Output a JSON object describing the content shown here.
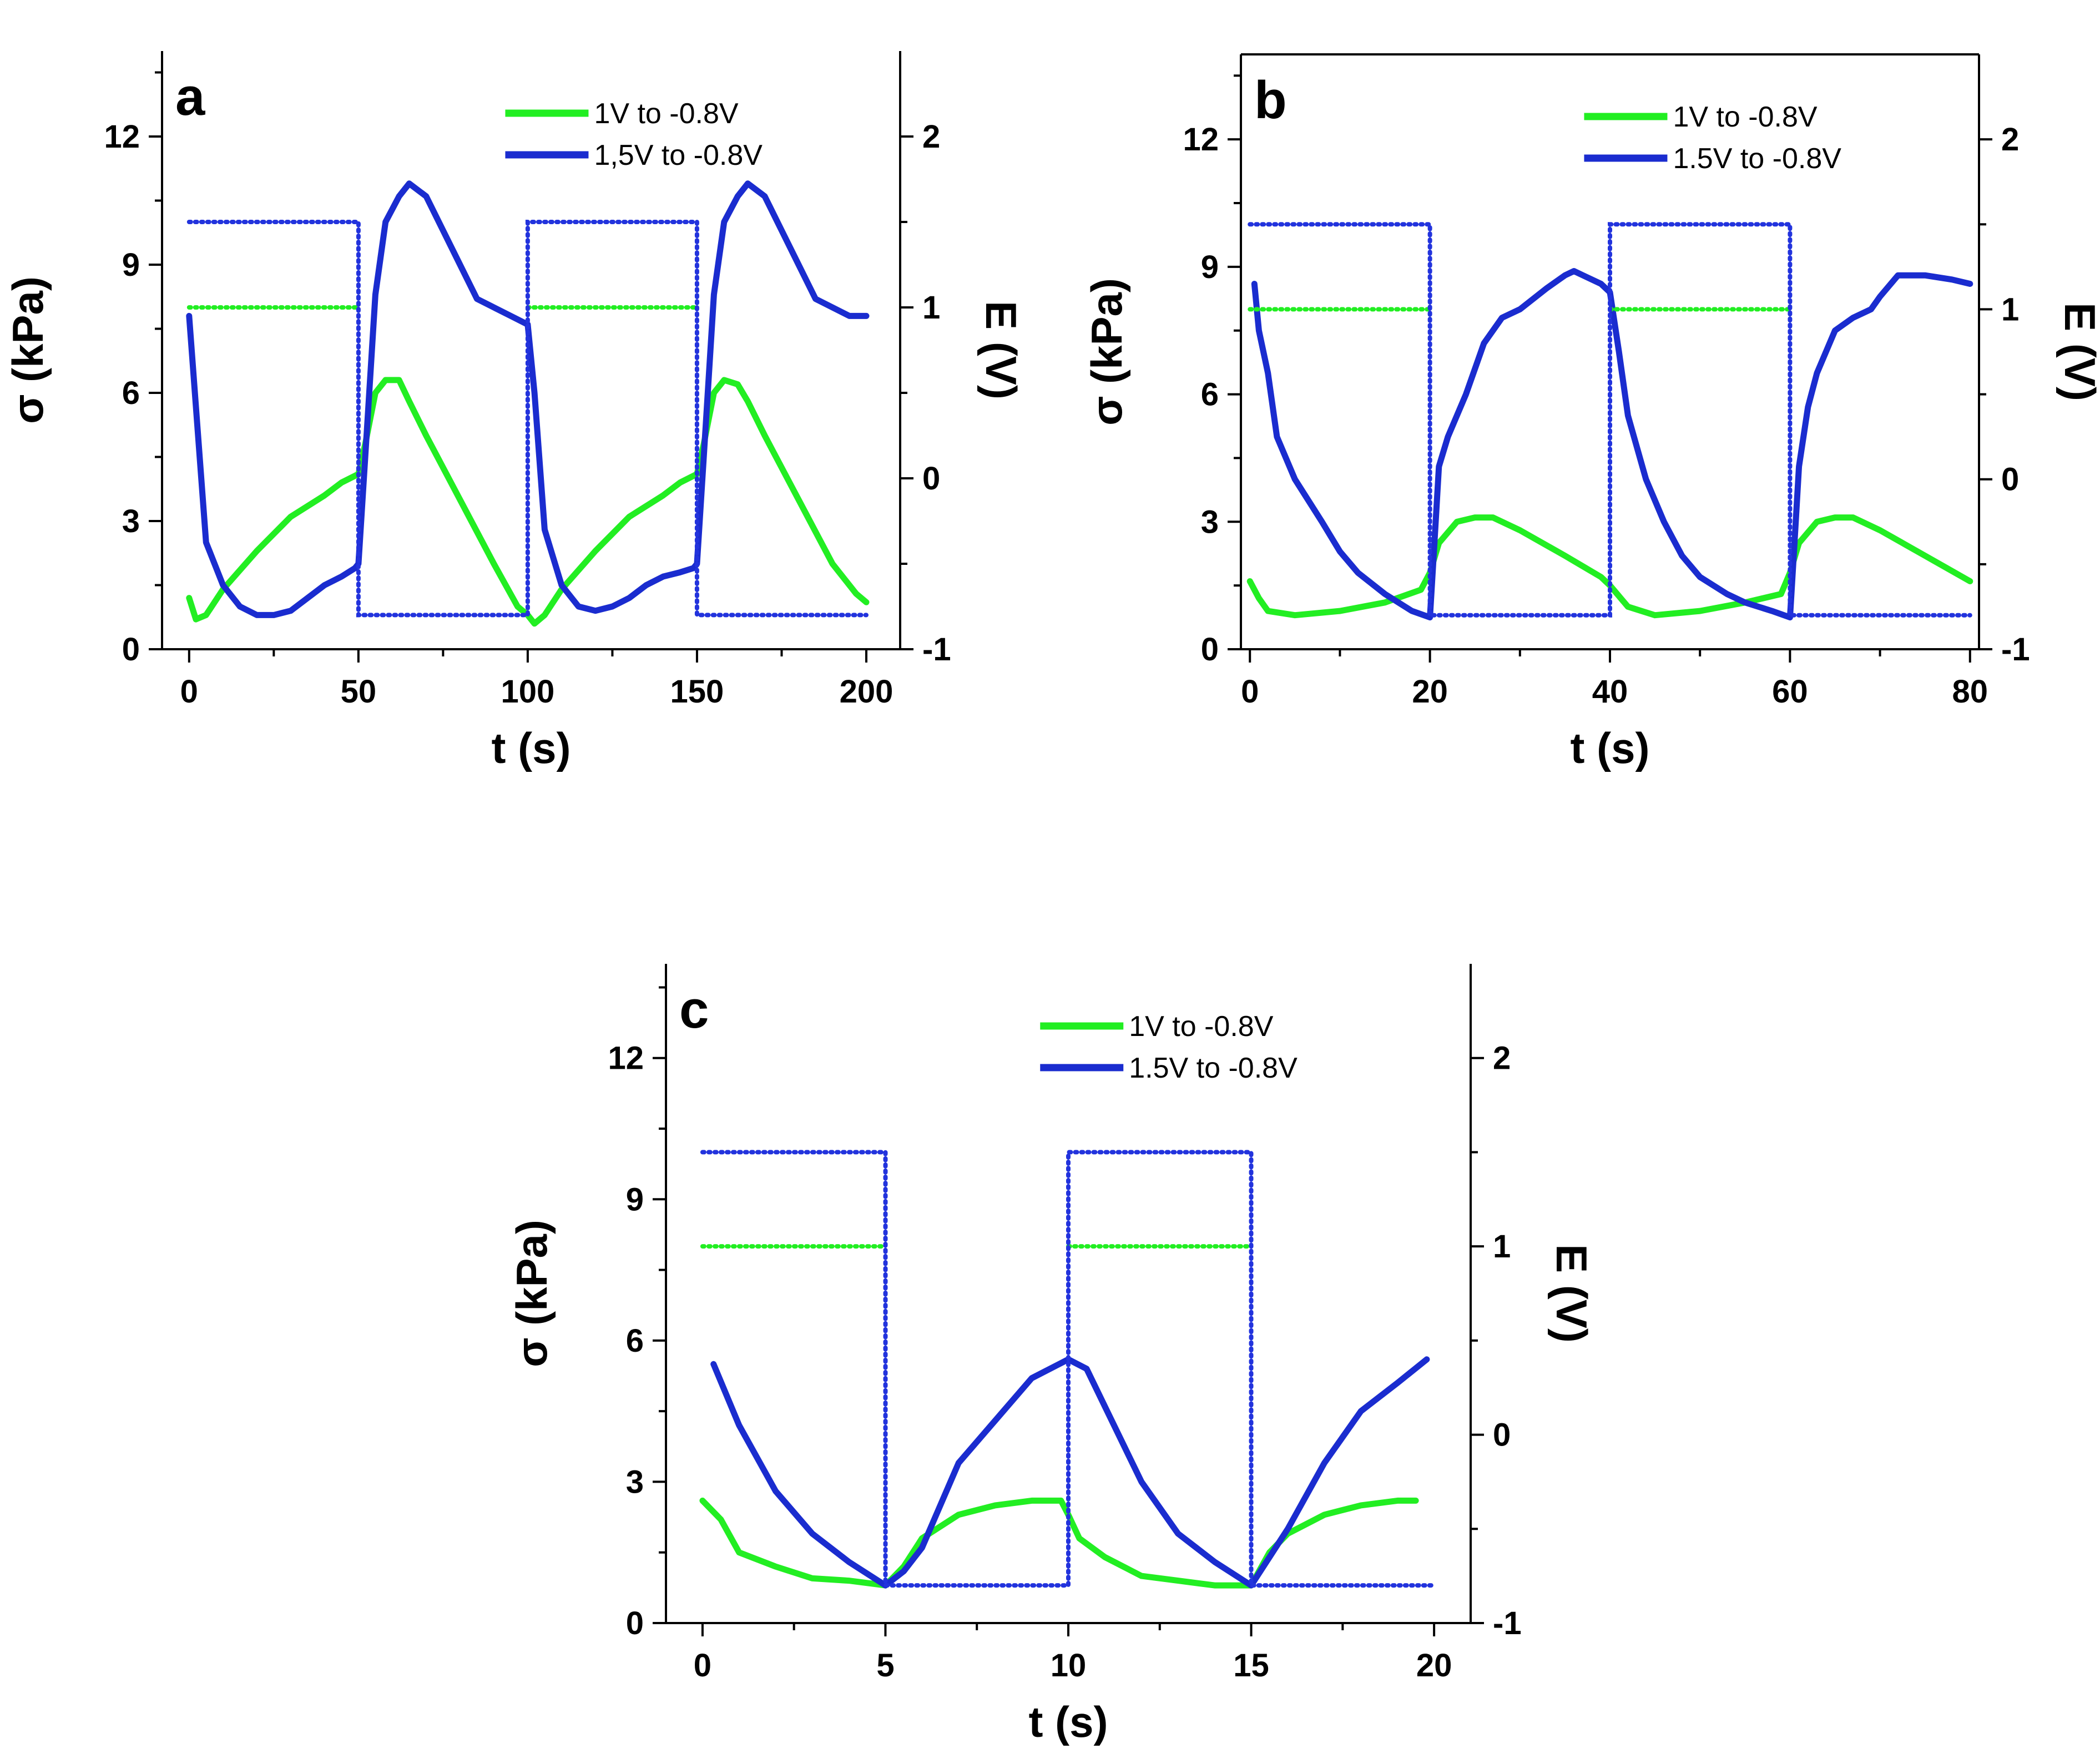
{
  "colors": {
    "green": "#22ee22",
    "blue": "#1a2ccf",
    "dotted_blue": "#2233dd",
    "axis": "#000000"
  },
  "chart_data": [
    {
      "type": "line",
      "panel": "a",
      "xlabel": "t (s)",
      "ylabel": "σ (kPa)",
      "y2label": "E (V)",
      "xlim": [
        -8,
        210
      ],
      "ylim": [
        0,
        14
      ],
      "y2lim": [
        -1,
        2.5
      ],
      "xticks": [
        0,
        50,
        100,
        150,
        200
      ],
      "yticks": [
        0,
        3,
        6,
        9,
        12
      ],
      "y2ticks": [
        -1,
        0,
        1,
        2
      ],
      "xtick_labels": [
        "0",
        "50",
        "100",
        "150",
        "200"
      ],
      "ytick_labels": [
        "0",
        "3",
        "6",
        "9",
        "12"
      ],
      "y2tick_labels": [
        "-1",
        "0",
        "1",
        "2"
      ],
      "legend": {
        "placement": "top-center",
        "entries": [
          "1V to -0.8V",
          "1,5V to -0.8V"
        ]
      },
      "series": [
        {
          "name": "1V to -0.8V",
          "axis": "left",
          "style": "solid",
          "color": "green",
          "x": [
            0,
            2,
            5,
            10,
            20,
            30,
            40,
            45,
            50,
            52,
            55,
            58,
            62,
            65,
            70,
            80,
            90,
            97,
            100,
            102,
            105,
            110,
            120,
            130,
            140,
            145,
            150,
            152,
            155,
            158,
            162,
            165,
            170,
            180,
            190,
            197,
            200
          ],
          "y": [
            1.2,
            0.7,
            0.8,
            1.4,
            2.3,
            3.1,
            3.6,
            3.9,
            4.1,
            4.8,
            6.0,
            6.3,
            6.3,
            5.8,
            5.0,
            3.5,
            2.0,
            1.0,
            0.8,
            0.6,
            0.8,
            1.4,
            2.3,
            3.1,
            3.6,
            3.9,
            4.1,
            4.8,
            6.0,
            6.3,
            6.2,
            5.8,
            5.0,
            3.5,
            2.0,
            1.3,
            1.1
          ]
        },
        {
          "name": "1,5V to -0.8V",
          "axis": "left",
          "style": "solid",
          "color": "blue",
          "x": [
            0,
            5,
            10,
            15,
            20,
            25,
            30,
            35,
            40,
            45,
            49,
            50,
            52,
            55,
            58,
            60,
            62,
            65,
            70,
            75,
            80,
            85,
            90,
            95,
            100,
            102,
            105,
            110,
            115,
            120,
            125,
            130,
            135,
            140,
            145,
            149,
            150,
            152,
            155,
            158,
            160,
            162,
            165,
            170,
            175,
            180,
            185,
            190,
            195,
            200
          ],
          "y": [
            7.8,
            2.5,
            1.5,
            1.0,
            0.8,
            0.8,
            0.9,
            1.2,
            1.5,
            1.7,
            1.9,
            2.0,
            4.5,
            8.3,
            10.0,
            10.3,
            10.6,
            10.9,
            10.6,
            9.8,
            9.0,
            8.2,
            8.0,
            7.8,
            7.6,
            6.0,
            2.8,
            1.5,
            1.0,
            0.9,
            1.0,
            1.2,
            1.5,
            1.7,
            1.8,
            1.9,
            2.0,
            4.5,
            8.3,
            10.0,
            10.3,
            10.6,
            10.9,
            10.6,
            9.8,
            9.0,
            8.2,
            8.0,
            7.8,
            7.8
          ]
        },
        {
          "name": "E (1V to -0.8V)",
          "axis": "right",
          "style": "dotted",
          "color": "green",
          "x": [
            0,
            50,
            null,
            100,
            150
          ],
          "y": [
            1.0,
            1.0,
            null,
            1.0,
            1.0
          ]
        },
        {
          "name": "E (1.5V to -0.8V)",
          "axis": "right",
          "style": "dotted",
          "color": "blue",
          "x": [
            0,
            50,
            50,
            100,
            100,
            150,
            150,
            200
          ],
          "y": [
            1.5,
            1.5,
            -0.8,
            -0.8,
            1.5,
            1.5,
            -0.8,
            -0.8
          ]
        }
      ]
    },
    {
      "type": "line",
      "panel": "b",
      "xlabel": "t (s)",
      "ylabel": "σ (kPa)",
      "y2label": "E (V)",
      "xlim": [
        -1,
        81
      ],
      "ylim": [
        0,
        14
      ],
      "y2lim": [
        -1,
        2.5
      ],
      "xticks": [
        0,
        20,
        40,
        60,
        80
      ],
      "yticks": [
        0,
        3,
        6,
        9,
        12
      ],
      "y2ticks": [
        -1,
        0,
        1,
        2
      ],
      "xtick_labels": [
        "0",
        "20",
        "40",
        "60",
        "80"
      ],
      "ytick_labels": [
        "0",
        "3",
        "6",
        "9",
        "12"
      ],
      "y2tick_labels": [
        "-1",
        "0",
        "1",
        "2"
      ],
      "legend": {
        "placement": "top-center",
        "entries": [
          "1V to -0.8V",
          "1.5V to -0.8V"
        ]
      },
      "series": [
        {
          "name": "1V to -0.8V",
          "axis": "left",
          "style": "solid",
          "color": "green",
          "x": [
            0,
            1,
            2,
            5,
            10,
            15,
            19,
            20,
            21,
            23,
            25,
            27,
            30,
            35,
            39,
            40,
            42,
            45,
            50,
            55,
            59,
            60,
            61,
            63,
            65,
            67,
            70,
            75,
            80
          ],
          "y": [
            1.6,
            1.2,
            0.9,
            0.8,
            0.9,
            1.1,
            1.4,
            1.8,
            2.5,
            3.0,
            3.1,
            3.1,
            2.8,
            2.2,
            1.7,
            1.5,
            1.0,
            0.8,
            0.9,
            1.1,
            1.3,
            1.8,
            2.5,
            3.0,
            3.1,
            3.1,
            2.8,
            2.2,
            1.6
          ]
        },
        {
          "name": "1.5V to -0.8V",
          "axis": "left",
          "style": "solid",
          "color": "blue",
          "x": [
            0.5,
            1,
            2,
            3,
            5,
            8,
            10,
            12,
            15,
            18,
            20,
            20.5,
            21,
            22,
            24,
            26,
            28,
            30,
            33,
            35,
            36,
            37,
            39,
            40,
            41,
            42,
            44,
            46,
            48,
            50,
            53,
            55,
            58,
            60,
            60.5,
            61,
            62,
            63,
            65,
            67,
            69,
            70,
            72,
            75,
            78,
            80
          ],
          "y": [
            8.6,
            7.5,
            6.5,
            5.0,
            4.0,
            3.0,
            2.3,
            1.8,
            1.3,
            0.9,
            0.75,
            2.5,
            4.3,
            5.0,
            6.0,
            7.2,
            7.8,
            8.0,
            8.5,
            8.8,
            8.9,
            8.8,
            8.6,
            8.4,
            7.0,
            5.5,
            4.0,
            3.0,
            2.2,
            1.7,
            1.3,
            1.1,
            0.9,
            0.75,
            2.5,
            4.3,
            5.7,
            6.5,
            7.5,
            7.8,
            8.0,
            8.3,
            8.8,
            8.8,
            8.7,
            8.6
          ]
        },
        {
          "name": "E (1V to -0.8V)",
          "axis": "right",
          "style": "dotted",
          "color": "green",
          "x": [
            0,
            20,
            null,
            40,
            60
          ],
          "y": [
            1.0,
            1.0,
            null,
            1.0,
            1.0
          ]
        },
        {
          "name": "E (1.5V to -0.8V)",
          "axis": "right",
          "style": "dotted",
          "color": "blue",
          "x": [
            0,
            20,
            20,
            40,
            40,
            60,
            60,
            80
          ],
          "y": [
            1.5,
            1.5,
            -0.8,
            -0.8,
            1.5,
            1.5,
            -0.8,
            -0.8
          ]
        }
      ]
    },
    {
      "type": "line",
      "panel": "c",
      "xlabel": "t (s)",
      "ylabel": "σ (kPa)",
      "y2label": "E (V)",
      "xlim": [
        -1,
        21
      ],
      "ylim": [
        0,
        14
      ],
      "y2lim": [
        -1,
        2.5
      ],
      "xticks": [
        0,
        5,
        10,
        15,
        20
      ],
      "yticks": [
        0,
        3,
        6,
        9,
        12
      ],
      "y2ticks": [
        -1,
        0,
        1,
        2
      ],
      "xtick_labels": [
        "0",
        "5",
        "10",
        "15",
        "20"
      ],
      "ytick_labels": [
        "0",
        "3",
        "6",
        "9",
        "12"
      ],
      "y2tick_labels": [
        "-1",
        "0",
        "1",
        "2"
      ],
      "legend": {
        "placement": "top-center",
        "entries": [
          "1V to -0.8V",
          "1.5V to -0.8V"
        ]
      },
      "series": [
        {
          "name": "1V to -0.8V",
          "axis": "left",
          "style": "solid",
          "color": "green",
          "x": [
            0,
            0.5,
            1,
            2,
            3,
            4,
            5,
            5.5,
            6,
            7,
            8,
            9,
            9.8,
            10,
            10.3,
            11,
            12,
            13,
            14,
            15,
            15.5,
            16,
            17,
            18,
            19,
            19.5
          ],
          "y": [
            2.6,
            2.2,
            1.5,
            1.2,
            0.95,
            0.9,
            0.8,
            1.2,
            1.8,
            2.3,
            2.5,
            2.6,
            2.6,
            2.3,
            1.8,
            1.4,
            1.0,
            0.9,
            0.8,
            0.8,
            1.5,
            1.9,
            2.3,
            2.5,
            2.6,
            2.6
          ]
        },
        {
          "name": "1.5V to -0.8V",
          "axis": "left",
          "style": "solid",
          "color": "blue",
          "x": [
            0.3,
            1,
            2,
            3,
            4,
            5,
            5.5,
            6,
            7,
            8,
            9,
            10,
            10.5,
            11,
            12,
            13,
            14,
            15,
            15.5,
            16,
            17,
            18,
            19,
            19.8
          ],
          "y": [
            5.5,
            4.2,
            2.8,
            1.9,
            1.3,
            0.8,
            1.1,
            1.6,
            3.4,
            4.3,
            5.2,
            5.6,
            5.4,
            4.6,
            3.0,
            1.9,
            1.3,
            0.8,
            1.4,
            2.0,
            3.4,
            4.5,
            5.1,
            5.6
          ]
        },
        {
          "name": "E (1V to -0.8V)",
          "axis": "right",
          "style": "dotted",
          "color": "green",
          "x": [
            0,
            5,
            null,
            10,
            15
          ],
          "y": [
            1.0,
            1.0,
            null,
            1.0,
            1.0
          ]
        },
        {
          "name": "E (1.5V to -0.8V)",
          "axis": "right",
          "style": "dotted",
          "color": "blue",
          "x": [
            0,
            5,
            5,
            10,
            10,
            15,
            15,
            20
          ],
          "y": [
            1.5,
            1.5,
            -0.8,
            -0.8,
            1.5,
            1.5,
            -0.8,
            -0.8
          ]
        }
      ]
    }
  ]
}
